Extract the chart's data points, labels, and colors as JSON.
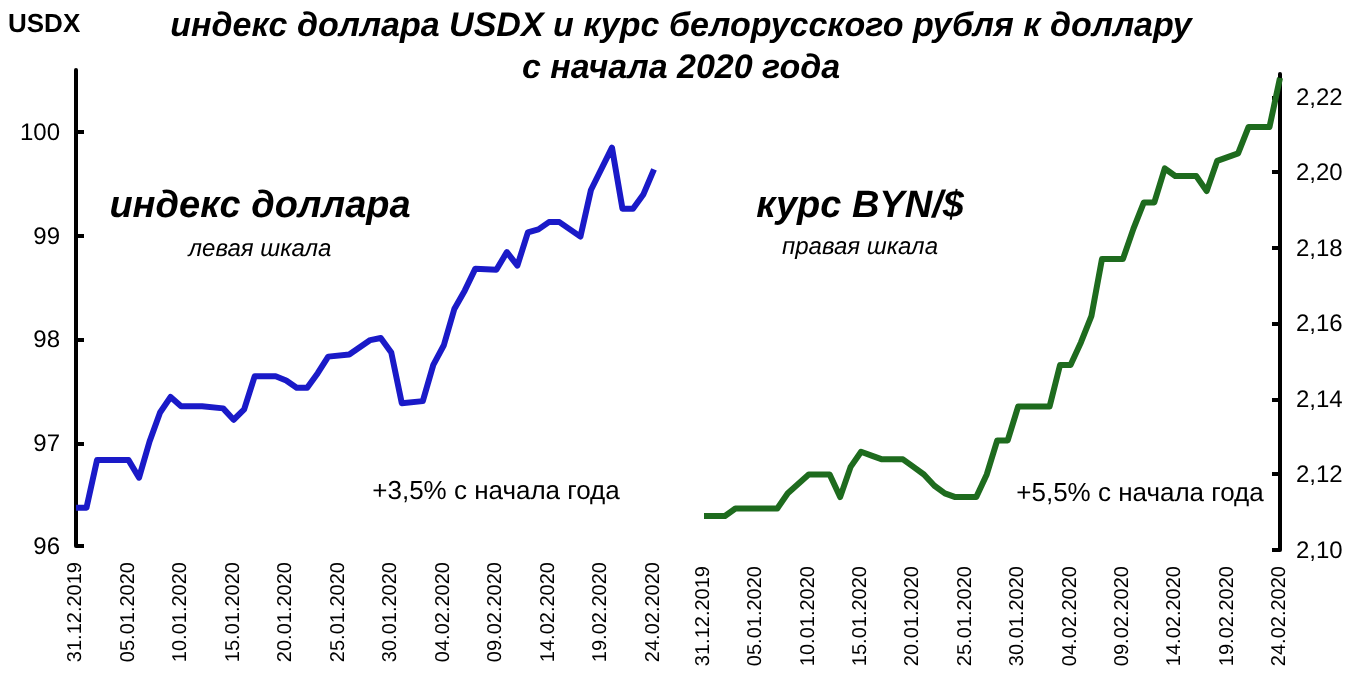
{
  "chart_data": [
    {
      "type": "line",
      "title": "индекс доллара USDX и курс белорусского рубля к доллару\nс начала 2020 года",
      "ylabel": "USDX",
      "annotations": [
        "индекс доллара",
        "левая шкала",
        "+3,5% с начала года"
      ],
      "xlim": [
        "2019-12-31",
        "2020-02-24"
      ],
      "xticks": [
        {
          "value": "2019-12-31",
          "label": "31.12.2019"
        },
        {
          "value": "2020-01-05",
          "label": "05.01.2020"
        },
        {
          "value": "2020-01-10",
          "label": "10.01.2020"
        },
        {
          "value": "2020-01-15",
          "label": "15.01.2020"
        },
        {
          "value": "2020-01-20",
          "label": "20.01.2020"
        },
        {
          "value": "2020-01-25",
          "label": "25.01.2020"
        },
        {
          "value": "2020-01-30",
          "label": "30.01.2020"
        },
        {
          "value": "2020-02-04",
          "label": "04.02.2020"
        },
        {
          "value": "2020-02-09",
          "label": "09.02.2020"
        },
        {
          "value": "2020-02-14",
          "label": "14.02.2020"
        },
        {
          "value": "2020-02-19",
          "label": "19.02.2020"
        },
        {
          "value": "2020-02-24",
          "label": "24.02.2020"
        }
      ],
      "ylim": [
        96,
        100.6
      ],
      "yticks": [
        96,
        97,
        98,
        99,
        100
      ],
      "series": [
        {
          "color": "#1a1ac8",
          "x": [
            "2019-12-31",
            "2020-01-01",
            "2020-01-02",
            "2020-01-05",
            "2020-01-06",
            "2020-01-07",
            "2020-01-08",
            "2020-01-09",
            "2020-01-10",
            "2020-01-12",
            "2020-01-14",
            "2020-01-15",
            "2020-01-16",
            "2020-01-17",
            "2020-01-19",
            "2020-01-20",
            "2020-01-21",
            "2020-01-22",
            "2020-01-23",
            "2020-01-24",
            "2020-01-26",
            "2020-01-28",
            "2020-01-29",
            "2020-01-30",
            "2020-01-31",
            "2020-02-02",
            "2020-02-03",
            "2020-02-04",
            "2020-02-05",
            "2020-02-06",
            "2020-02-07",
            "2020-02-09",
            "2020-02-10",
            "2020-02-11",
            "2020-02-12",
            "2020-02-13",
            "2020-02-14",
            "2020-02-15",
            "2020-02-16",
            "2020-02-17",
            "2020-02-18",
            "2020-02-20",
            "2020-02-21",
            "2020-02-22",
            "2020-02-23",
            "2020-02-24"
          ],
          "values": [
            96.37,
            96.37,
            96.83,
            96.83,
            96.66,
            97.01,
            97.29,
            97.44,
            97.35,
            97.35,
            97.33,
            97.22,
            97.32,
            97.64,
            97.64,
            97.6,
            97.53,
            97.53,
            97.67,
            97.83,
            97.85,
            97.99,
            98.01,
            97.87,
            97.38,
            97.4,
            97.75,
            97.94,
            98.29,
            98.47,
            98.68,
            98.67,
            98.84,
            98.71,
            99.03,
            99.06,
            99.13,
            99.13,
            99.06,
            98.99,
            99.44,
            99.85,
            99.26,
            99.26,
            99.4,
            99.64
          ]
        }
      ]
    },
    {
      "type": "line",
      "annotations": [
        "курс BYN/$",
        "правая шкала",
        "+5,5% с начала года"
      ],
      "xlim": [
        "2019-12-31",
        "2020-02-24"
      ],
      "xticks": [
        {
          "value": "2019-12-31",
          "label": "31.12.2019"
        },
        {
          "value": "2020-01-05",
          "label": "05.01.2020"
        },
        {
          "value": "2020-01-10",
          "label": "10.01.2020"
        },
        {
          "value": "2020-01-15",
          "label": "15.01.2020"
        },
        {
          "value": "2020-01-20",
          "label": "20.01.2020"
        },
        {
          "value": "2020-01-25",
          "label": "25.01.2020"
        },
        {
          "value": "2020-01-30",
          "label": "30.01.2020"
        },
        {
          "value": "2020-02-04",
          "label": "04.02.2020"
        },
        {
          "value": "2020-02-09",
          "label": "09.02.2020"
        },
        {
          "value": "2020-02-14",
          "label": "14.02.2020"
        },
        {
          "value": "2020-02-19",
          "label": "19.02.2020"
        },
        {
          "value": "2020-02-24",
          "label": "24.02.2020"
        }
      ],
      "y2lim": [
        2.1,
        2.226
      ],
      "y2ticks": [
        {
          "value": 2.1,
          "label": "2,10"
        },
        {
          "value": 2.12,
          "label": "2,12"
        },
        {
          "value": 2.14,
          "label": "2,14"
        },
        {
          "value": 2.16,
          "label": "2,16"
        },
        {
          "value": 2.18,
          "label": "2,18"
        },
        {
          "value": 2.2,
          "label": "2,20"
        },
        {
          "value": 2.22,
          "label": "2,22"
        }
      ],
      "series": [
        {
          "color": "#1e6b1e",
          "axis": "y2",
          "x": [
            "2019-12-31",
            "2020-01-02",
            "2020-01-03",
            "2020-01-07",
            "2020-01-08",
            "2020-01-10",
            "2020-01-12",
            "2020-01-13",
            "2020-01-14",
            "2020-01-15",
            "2020-01-16",
            "2020-01-17",
            "2020-01-19",
            "2020-01-20",
            "2020-01-21",
            "2020-01-22",
            "2020-01-23",
            "2020-01-24",
            "2020-01-26",
            "2020-01-27",
            "2020-01-28",
            "2020-01-29",
            "2020-01-30",
            "2020-02-02",
            "2020-02-03",
            "2020-02-04",
            "2020-02-05",
            "2020-02-06",
            "2020-02-07",
            "2020-02-09",
            "2020-02-10",
            "2020-02-11",
            "2020-02-12",
            "2020-02-13",
            "2020-02-14",
            "2020-02-16",
            "2020-02-17",
            "2020-02-18",
            "2020-02-19",
            "2020-02-20",
            "2020-02-21",
            "2020-02-23",
            "2020-02-24"
          ],
          "values": [
            2.109,
            2.109,
            2.111,
            2.111,
            2.115,
            2.12,
            2.12,
            2.114,
            2.122,
            2.126,
            2.125,
            2.124,
            2.124,
            2.122,
            2.12,
            2.117,
            2.115,
            2.114,
            2.114,
            2.12,
            2.129,
            2.129,
            2.138,
            2.138,
            2.149,
            2.149,
            2.155,
            2.162,
            2.177,
            2.177,
            2.185,
            2.192,
            2.192,
            2.201,
            2.199,
            2.199,
            2.195,
            2.203,
            2.204,
            2.205,
            2.212,
            2.212,
            2.225
          ]
        }
      ]
    }
  ]
}
